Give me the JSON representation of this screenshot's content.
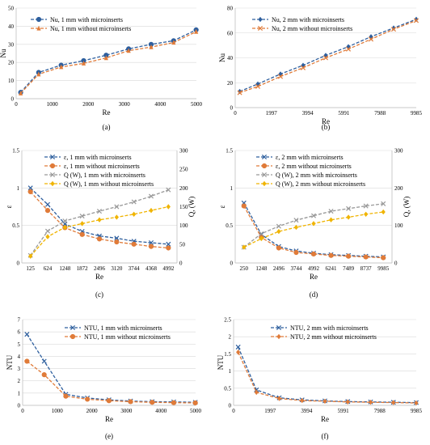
{
  "chart_data": [
    {
      "id": "a",
      "type": "line",
      "panel_label": "(a)",
      "xlabel": "Re",
      "ylabel": "Nu",
      "xlim": [
        0,
        5000
      ],
      "ylim": [
        0,
        50
      ],
      "xticks": [
        0,
        1000,
        2000,
        3000,
        4000,
        5000
      ],
      "yticks": [
        0,
        10,
        20,
        30,
        40,
        50
      ],
      "legend_position": "top-left",
      "series": [
        {
          "name": "Nu, 1 mm with microinserts",
          "color": "#2e5f9e",
          "marker": "circle",
          "dash": "4,2",
          "x": [
            125,
            624,
            1248,
            1872,
            2496,
            3120,
            3744,
            4368,
            4992
          ],
          "y": [
            3.5,
            14.5,
            18.5,
            21,
            24,
            27.5,
            30,
            32,
            38
          ]
        },
        {
          "name": "Nu, 1 mm without microinserts",
          "color": "#e07b39",
          "marker": "triangle",
          "dash": "4,2",
          "x": [
            125,
            624,
            1248,
            1872,
            2496,
            3120,
            3744,
            4368,
            4992
          ],
          "y": [
            3,
            13.5,
            17.5,
            19.5,
            22.5,
            26.5,
            28.5,
            31,
            37
          ]
        }
      ]
    },
    {
      "id": "b",
      "type": "line",
      "panel_label": "(b)",
      "xlabel": "Re",
      "ylabel": "Nu",
      "xlim": [
        0,
        9985
      ],
      "ylim": [
        0,
        80
      ],
      "xtick_values": [
        0,
        1997,
        3994,
        5991,
        7988,
        9985
      ],
      "xtick_labels": [
        "0",
        "1997",
        "3994",
        "5991",
        "7988",
        "9985"
      ],
      "yticks": [
        0,
        20,
        40,
        60,
        80
      ],
      "legend_position": "top-left",
      "series": [
        {
          "name": "Nu, 2 mm with microinserts",
          "color": "#2e5f9e",
          "marker": "diamond",
          "dash": "4,2",
          "x": [
            250,
            1248,
            2496,
            3744,
            4992,
            6241,
            7489,
            8737,
            9985
          ],
          "y": [
            13,
            19,
            27,
            34,
            42,
            49,
            57,
            64,
            71
          ]
        },
        {
          "name": "Nu, 2 mm without microinserts",
          "color": "#e07b39",
          "marker": "x",
          "dash": "4,2",
          "x": [
            250,
            1248,
            2496,
            3744,
            4992,
            6241,
            7489,
            8737,
            9985
          ],
          "y": [
            12,
            17,
            25,
            32,
            40,
            47,
            55,
            63,
            70
          ]
        }
      ]
    },
    {
      "id": "c",
      "type": "line",
      "panel_label": "(c)",
      "xlabel": "Re",
      "ylabel": "ε",
      "y2label": "Q, (W)",
      "categories": [
        "125",
        "624",
        "1248",
        "1872",
        "2496",
        "3120",
        "3744",
        "4368",
        "4992"
      ],
      "ylim": [
        0,
        1.5
      ],
      "yticks": [
        0,
        0.5,
        1,
        1.5
      ],
      "ytick_labels": [
        "0",
        "0.5",
        "1",
        "1.5"
      ],
      "y2lim": [
        0,
        300
      ],
      "y2ticks": [
        0,
        50,
        100,
        150,
        200,
        250,
        300
      ],
      "legend_position": "top-right",
      "series": [
        {
          "name": "ε, 1 mm with microinserts",
          "color": "#2e5f9e",
          "marker": "x",
          "dash": "4,2",
          "axis": "left",
          "values": [
            1.0,
            0.78,
            0.52,
            0.42,
            0.36,
            0.33,
            0.29,
            0.27,
            0.25
          ]
        },
        {
          "name": "ε, 1 mm without microinserts",
          "color": "#e07b39",
          "marker": "circle",
          "dash": "4,2",
          "axis": "left",
          "values": [
            0.95,
            0.7,
            0.47,
            0.38,
            0.32,
            0.28,
            0.25,
            0.22,
            0.2
          ]
        },
        {
          "name": "Q (W), 1 mm with microinserts",
          "color": "#999999",
          "marker": "x",
          "dash": "4,2",
          "axis": "right",
          "values": [
            20,
            85,
            112,
            125,
            138,
            150,
            163,
            178,
            195
          ]
        },
        {
          "name": "Q (W), 1 mm without microinserts",
          "color": "#f0b400",
          "marker": "diamond",
          "dash": "4,2",
          "axis": "right",
          "values": [
            18,
            70,
            95,
            105,
            115,
            122,
            130,
            140,
            150
          ]
        }
      ]
    },
    {
      "id": "d",
      "type": "line",
      "panel_label": "(d)",
      "xlabel": "Re",
      "ylabel": "ε",
      "y2label": "Q, (W)",
      "categories": [
        "250",
        "1248",
        "2496",
        "3744",
        "4992",
        "6241",
        "7489",
        "8737",
        "9985"
      ],
      "ylim": [
        0,
        1.5
      ],
      "yticks": [
        0,
        0.5,
        1,
        1.5
      ],
      "ytick_labels": [
        "0",
        "0.5",
        "1",
        "1.5"
      ],
      "y2lim": [
        0,
        300
      ],
      "y2ticks": [
        0,
        100,
        200,
        300
      ],
      "legend_position": "top-right",
      "series": [
        {
          "name": "ε, 2 mm with microinserts",
          "color": "#2e5f9e",
          "marker": "x",
          "dash": "4,2",
          "axis": "left",
          "values": [
            0.8,
            0.38,
            0.22,
            0.16,
            0.13,
            0.11,
            0.1,
            0.09,
            0.08
          ]
        },
        {
          "name": "ε, 2 mm without microinserts",
          "color": "#e07b39",
          "marker": "circle",
          "dash": "4,2",
          "axis": "left",
          "values": [
            0.76,
            0.34,
            0.2,
            0.14,
            0.12,
            0.1,
            0.09,
            0.08,
            0.07
          ]
        },
        {
          "name": "Q (W), 2 mm with microinserts",
          "color": "#999999",
          "marker": "x",
          "dash": "4,2",
          "axis": "right",
          "values": [
            42,
            78,
            98,
            114,
            126,
            138,
            145,
            152,
            158
          ]
        },
        {
          "name": "Q (W), 2 mm without microinserts",
          "color": "#f0b400",
          "marker": "diamond",
          "dash": "4,2",
          "axis": "right",
          "values": [
            42,
            65,
            84,
            95,
            105,
            115,
            122,
            130,
            136
          ]
        }
      ]
    },
    {
      "id": "e",
      "type": "line",
      "panel_label": "(e)",
      "xlabel": "Re",
      "ylabel": "NTU",
      "xlim": [
        0,
        5000
      ],
      "ylim": [
        0,
        7
      ],
      "xticks": [
        0,
        1000,
        2000,
        3000,
        4000,
        5000
      ],
      "yticks": [
        0,
        1,
        2,
        3,
        4,
        5,
        6,
        7
      ],
      "legend_position": "top-right",
      "series": [
        {
          "name": "NTU, 1 mm with microinserts",
          "color": "#2e5f9e",
          "marker": "x",
          "dash": "4,2",
          "x": [
            125,
            624,
            1248,
            1872,
            2496,
            3120,
            3744,
            4368,
            4992
          ],
          "y": [
            5.8,
            3.6,
            0.9,
            0.6,
            0.45,
            0.35,
            0.3,
            0.28,
            0.25
          ]
        },
        {
          "name": "NTU, 1 mm without microinserts",
          "color": "#e07b39",
          "marker": "circle",
          "dash": "4,2",
          "x": [
            125,
            624,
            1248,
            1872,
            2496,
            3120,
            3744,
            4368,
            4992
          ],
          "y": [
            3.6,
            2.5,
            0.75,
            0.5,
            0.38,
            0.3,
            0.25,
            0.22,
            0.2
          ]
        }
      ]
    },
    {
      "id": "f",
      "type": "line",
      "panel_label": "(f)",
      "xlabel": "Re",
      "ylabel": "NTU",
      "xlim": [
        0,
        9985
      ],
      "ylim": [
        0,
        2.5
      ],
      "xtick_values": [
        0,
        1997,
        3994,
        5991,
        7988,
        9985
      ],
      "xtick_labels": [
        "0",
        "1997",
        "3994",
        "5991",
        "7988",
        "9985"
      ],
      "yticks": [
        0,
        0.5,
        1,
        1.5,
        2,
        2.5
      ],
      "ytick_labels": [
        "0",
        "0.5",
        "1",
        "1.5",
        "2",
        "2.5"
      ],
      "legend_position": "top-right",
      "series": [
        {
          "name": "NTU, 2 mm with microinserts",
          "color": "#2e5f9e",
          "marker": "x",
          "dash": "4,2",
          "x": [
            250,
            1248,
            2496,
            3744,
            4992,
            6241,
            7489,
            8737,
            9985
          ],
          "y": [
            1.7,
            0.45,
            0.22,
            0.16,
            0.13,
            0.11,
            0.1,
            0.09,
            0.08
          ]
        },
        {
          "name": "NTU, 2 mm without microinserts",
          "color": "#e07b39",
          "marker": "diamond",
          "dash": "4,2",
          "x": [
            250,
            1248,
            2496,
            3744,
            4992,
            6241,
            7489,
            8737,
            9985
          ],
          "y": [
            1.55,
            0.38,
            0.2,
            0.14,
            0.12,
            0.1,
            0.09,
            0.08,
            0.07
          ]
        }
      ]
    }
  ]
}
